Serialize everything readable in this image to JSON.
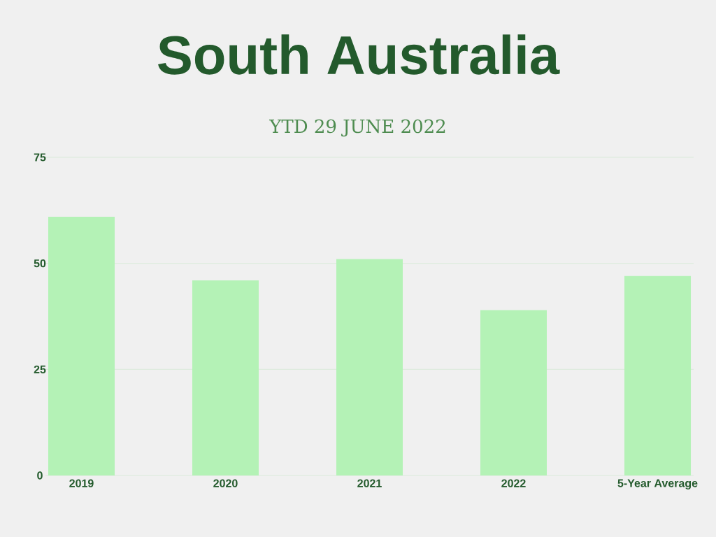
{
  "chart_data": {
    "type": "bar",
    "title": "South Australia",
    "subtitle": "YTD 29 JUNE 2022",
    "categories": [
      "2019",
      "2020",
      "2021",
      "2022",
      "5-Year Average"
    ],
    "values": [
      61,
      46,
      51,
      39,
      47
    ],
    "color": "#b4f2b6",
    "ylim": [
      0,
      75
    ],
    "yticks": [
      0,
      25,
      50,
      75
    ],
    "grid": "y"
  }
}
